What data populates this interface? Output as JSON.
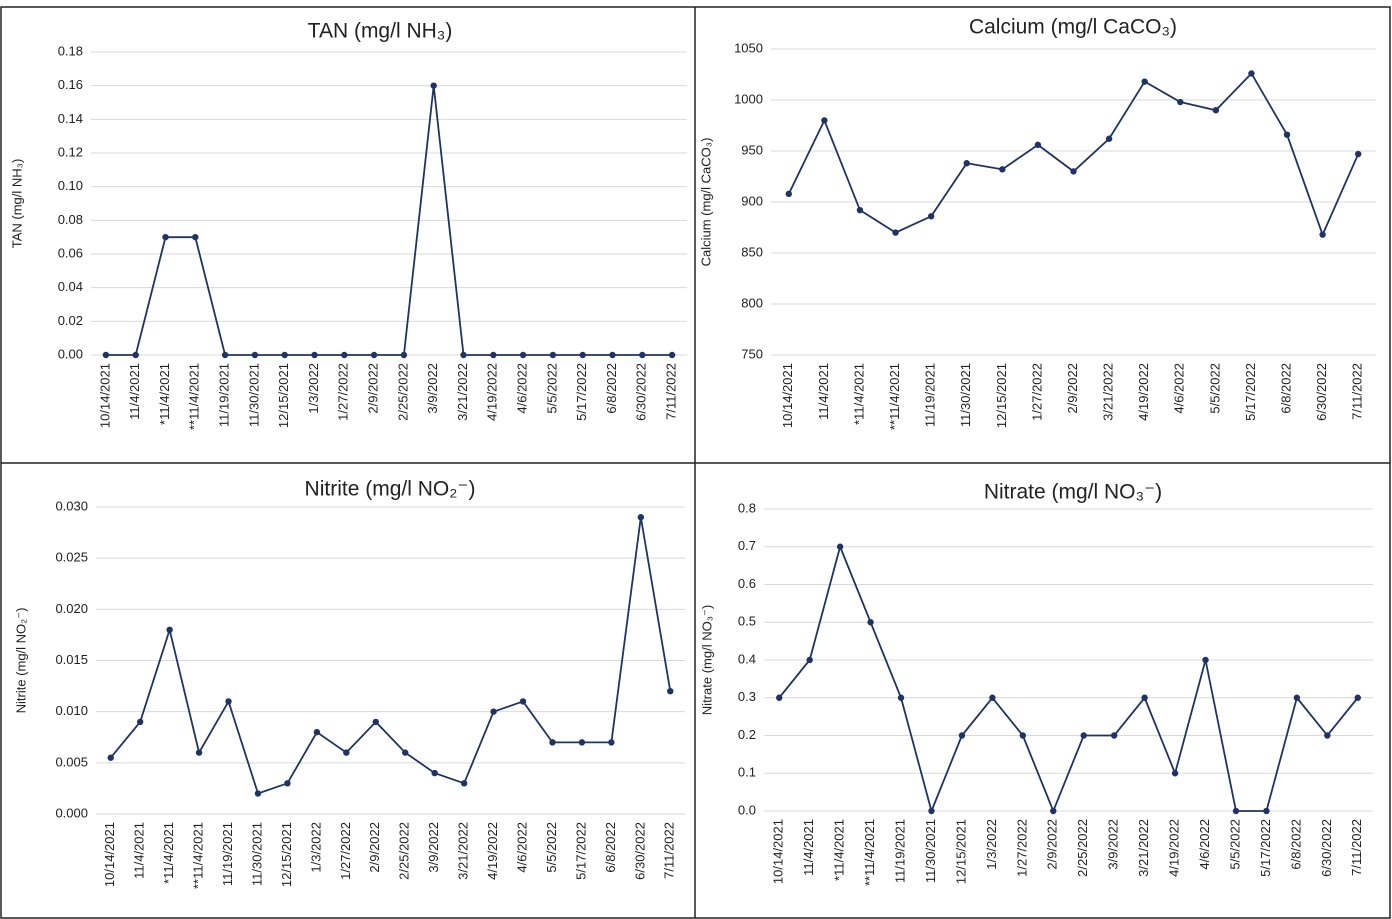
{
  "chart_data": [
    {
      "type": "line",
      "title": "TAN (mg/l NH₃)",
      "y_label": "TAN (mg/l NH₃)",
      "color": "#1f3462",
      "grid": true,
      "categories": [
        "10/14/2021",
        "11/4/2021",
        "*11/4/2021",
        "**11/4/2021",
        "11/19/2021",
        "11/30/2021",
        "12/15/2021",
        "1/3/2022",
        "1/27/2022",
        "2/9/2022",
        "2/25/2022",
        "3/9/2022",
        "3/21/2022",
        "4/19/2022",
        "4/6/2022",
        "5/5/2022",
        "5/17/2022",
        "6/8/2022",
        "6/30/2022",
        "7/11/2022"
      ],
      "values": [
        0,
        0,
        0.07,
        0.07,
        0,
        0,
        0,
        0,
        0,
        0,
        0,
        0.16,
        0,
        0,
        0,
        0,
        0,
        0,
        0,
        0
      ],
      "ylim": [
        0,
        0.18
      ],
      "yticks": [
        {
          "value": 0,
          "label": "0.00"
        },
        {
          "value": 0.02,
          "label": "0.02"
        },
        {
          "value": 0.04,
          "label": "0.04"
        },
        {
          "value": 0.06,
          "label": "0.06"
        },
        {
          "value": 0.08,
          "label": "0.08"
        },
        {
          "value": 0.1,
          "label": "0.10"
        },
        {
          "value": 0.12,
          "label": "0.12"
        },
        {
          "value": 0.14,
          "label": "0.14"
        },
        {
          "value": 0.16,
          "label": "0.16"
        },
        {
          "value": 0.18,
          "label": "0.18"
        }
      ]
    },
    {
      "type": "line",
      "title": "Calcium (mg/l CaCO₃)",
      "y_label": "Calcium (mg/l CaCO₃)",
      "color": "#1f3462",
      "grid": true,
      "categories": [
        "10/14/2021",
        "11/4/2021",
        "*11/4/2021",
        "**11/4/2021",
        "11/19/2021",
        "11/30/2021",
        "12/15/2021",
        "1/27/2022",
        "2/9/2022",
        "3/21/2022",
        "4/19/2022",
        "4/6/2022",
        "5/5/2022",
        "5/17/2022",
        "6/8/2022",
        "6/30/2022",
        "7/11/2022"
      ],
      "values": [
        908,
        980,
        892,
        870,
        886,
        938,
        932,
        956,
        930,
        962,
        1018,
        998,
        990,
        1026,
        966,
        868,
        947
      ],
      "ylim": [
        750,
        1050
      ],
      "yticks": [
        750,
        800,
        850,
        900,
        950,
        1000,
        1050
      ]
    },
    {
      "type": "line",
      "title": "Nitrite (mg/l NO₂⁻)",
      "y_label": "Nitrite (mg/l NO₂⁻)",
      "color": "#1f3462",
      "grid": true,
      "categories": [
        "10/14/2021",
        "11/4/2021",
        "*11/4/2021",
        "**11/4/2021",
        "11/19/2021",
        "11/30/2021",
        "12/15/2021",
        "1/3/2022",
        "1/27/2022",
        "2/9/2022",
        "2/25/2022",
        "3/9/2022",
        "3/21/2022",
        "4/19/2022",
        "4/6/2022",
        "5/5/2022",
        "5/17/2022",
        "6/8/2022",
        "6/30/2022",
        "7/11/2022"
      ],
      "values": [
        0.0055,
        0.009,
        0.018,
        0.006,
        0.011,
        0.002,
        0.003,
        0.008,
        0.006,
        0.009,
        0.006,
        0.004,
        0.003,
        0.01,
        0.011,
        0.007,
        0.007,
        0.007,
        0.029,
        0.012
      ],
      "ylim": [
        0,
        0.03
      ],
      "yticks": [
        {
          "value": 0,
          "label": "0.000"
        },
        {
          "value": 0.005,
          "label": "0.005"
        },
        {
          "value": 0.01,
          "label": "0.010"
        },
        {
          "value": 0.015,
          "label": "0.015"
        },
        {
          "value": 0.02,
          "label": "0.020"
        },
        {
          "value": 0.025,
          "label": "0.025"
        },
        {
          "value": 0.03,
          "label": "0.030"
        }
      ]
    },
    {
      "type": "line",
      "title": "Nitrate (mg/l NO₃⁻)",
      "y_label": "Nitrate (mg/l NO₃⁻)",
      "color": "#1f3462",
      "grid": true,
      "categories": [
        "10/14/2021",
        "11/4/2021",
        "*11/4/2021",
        "**11/4/2021",
        "11/19/2021",
        "11/30/2021",
        "12/15/2021",
        "1/3/2022",
        "1/27/2022",
        "2/9/2022",
        "2/25/2022",
        "3/9/2022",
        "3/21/2022",
        "4/19/2022",
        "4/6/2022",
        "5/5/2022",
        "5/17/2022",
        "6/8/2022",
        "6/30/2022",
        "7/11/2022"
      ],
      "values": [
        0.3,
        0.4,
        0.7,
        0.5,
        0.3,
        0,
        0.2,
        0.3,
        0.2,
        0,
        0.2,
        0.2,
        0.3,
        0.1,
        0.4,
        0,
        0,
        0.3,
        0.2,
        0.3
      ],
      "ylim": [
        0,
        0.8
      ],
      "yticks": [
        {
          "value": 0,
          "label": "0.0"
        },
        {
          "value": 0.1,
          "label": "0.1"
        },
        {
          "value": 0.2,
          "label": "0.2"
        },
        {
          "value": 0.3,
          "label": "0.3"
        },
        {
          "value": 0.4,
          "label": "0.4"
        },
        {
          "value": 0.5,
          "label": "0.5"
        },
        {
          "value": 0.6,
          "label": "0.6"
        },
        {
          "value": 0.7,
          "label": "0.7"
        },
        {
          "value": 0.8,
          "label": "0.8"
        }
      ]
    }
  ]
}
